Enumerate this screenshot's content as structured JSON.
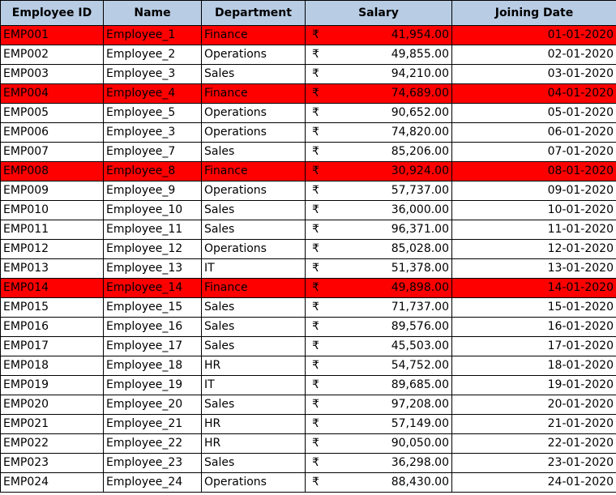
{
  "headers": [
    "Employee ID",
    "Name",
    "Department",
    "Salary",
    "Joining Date"
  ],
  "currency_symbol": "₹",
  "highlight_color": "#ff0000",
  "header_color": "#b8cce4",
  "rows": [
    {
      "id": "EMP001",
      "name": "Employee_1",
      "department": "Finance",
      "salary": "41,954.00",
      "date": "01-01-2020",
      "highlight": true
    },
    {
      "id": "EMP002",
      "name": "Employee_2",
      "department": "Operations",
      "salary": "49,855.00",
      "date": "02-01-2020",
      "highlight": false
    },
    {
      "id": "EMP003",
      "name": "Employee_3",
      "department": "Sales",
      "salary": "94,210.00",
      "date": "03-01-2020",
      "highlight": false
    },
    {
      "id": "EMP004",
      "name": "Employee_4",
      "department": "Finance",
      "salary": "74,689.00",
      "date": "04-01-2020",
      "highlight": true
    },
    {
      "id": "EMP005",
      "name": "Employee_5",
      "department": "Operations",
      "salary": "90,652.00",
      "date": "05-01-2020",
      "highlight": false
    },
    {
      "id": "EMP006",
      "name": "Employee_3",
      "department": "Operations",
      "salary": "74,820.00",
      "date": "06-01-2020",
      "highlight": false
    },
    {
      "id": "EMP007",
      "name": "Employee_7",
      "department": "Sales",
      "salary": "85,206.00",
      "date": "07-01-2020",
      "highlight": false
    },
    {
      "id": "EMP008",
      "name": "Employee_8",
      "department": "Finance",
      "salary": "30,924.00",
      "date": "08-01-2020",
      "highlight": true
    },
    {
      "id": "EMP009",
      "name": "Employee_9",
      "department": "Operations",
      "salary": "57,737.00",
      "date": "09-01-2020",
      "highlight": false
    },
    {
      "id": "EMP010",
      "name": "Employee_10",
      "department": "Sales",
      "salary": "36,000.00",
      "date": "10-01-2020",
      "highlight": false
    },
    {
      "id": "EMP011",
      "name": "Employee_11",
      "department": "Sales",
      "salary": "96,371.00",
      "date": "11-01-2020",
      "highlight": false
    },
    {
      "id": "EMP012",
      "name": "Employee_12",
      "department": "Operations",
      "salary": "85,028.00",
      "date": "12-01-2020",
      "highlight": false
    },
    {
      "id": "EMP013",
      "name": "Employee_13",
      "department": "IT",
      "salary": "51,378.00",
      "date": "13-01-2020",
      "highlight": false
    },
    {
      "id": "EMP014",
      "name": "Employee_14",
      "department": "Finance",
      "salary": "49,898.00",
      "date": "14-01-2020",
      "highlight": true
    },
    {
      "id": "EMP015",
      "name": "Employee_15",
      "department": "Sales",
      "salary": "71,737.00",
      "date": "15-01-2020",
      "highlight": false
    },
    {
      "id": "EMP016",
      "name": "Employee_16",
      "department": "Sales",
      "salary": "89,576.00",
      "date": "16-01-2020",
      "highlight": false
    },
    {
      "id": "EMP017",
      "name": "Employee_17",
      "department": "Sales",
      "salary": "45,503.00",
      "date": "17-01-2020",
      "highlight": false
    },
    {
      "id": "EMP018",
      "name": "Employee_18",
      "department": "HR",
      "salary": "54,752.00",
      "date": "18-01-2020",
      "highlight": false
    },
    {
      "id": "EMP019",
      "name": "Employee_19",
      "department": "IT",
      "salary": "89,685.00",
      "date": "19-01-2020",
      "highlight": false
    },
    {
      "id": "EMP020",
      "name": "Employee_20",
      "department": "Sales",
      "salary": "97,208.00",
      "date": "20-01-2020",
      "highlight": false
    },
    {
      "id": "EMP021",
      "name": "Employee_21",
      "department": "HR",
      "salary": "57,149.00",
      "date": "21-01-2020",
      "highlight": false
    },
    {
      "id": "EMP022",
      "name": "Employee_22",
      "department": "HR",
      "salary": "90,050.00",
      "date": "22-01-2020",
      "highlight": false
    },
    {
      "id": "EMP023",
      "name": "Employee_23",
      "department": "Sales",
      "salary": "36,298.00",
      "date": "23-01-2020",
      "highlight": false
    },
    {
      "id": "EMP024",
      "name": "Employee_24",
      "department": "Operations",
      "salary": "88,430.00",
      "date": "24-01-2020",
      "highlight": false
    }
  ]
}
